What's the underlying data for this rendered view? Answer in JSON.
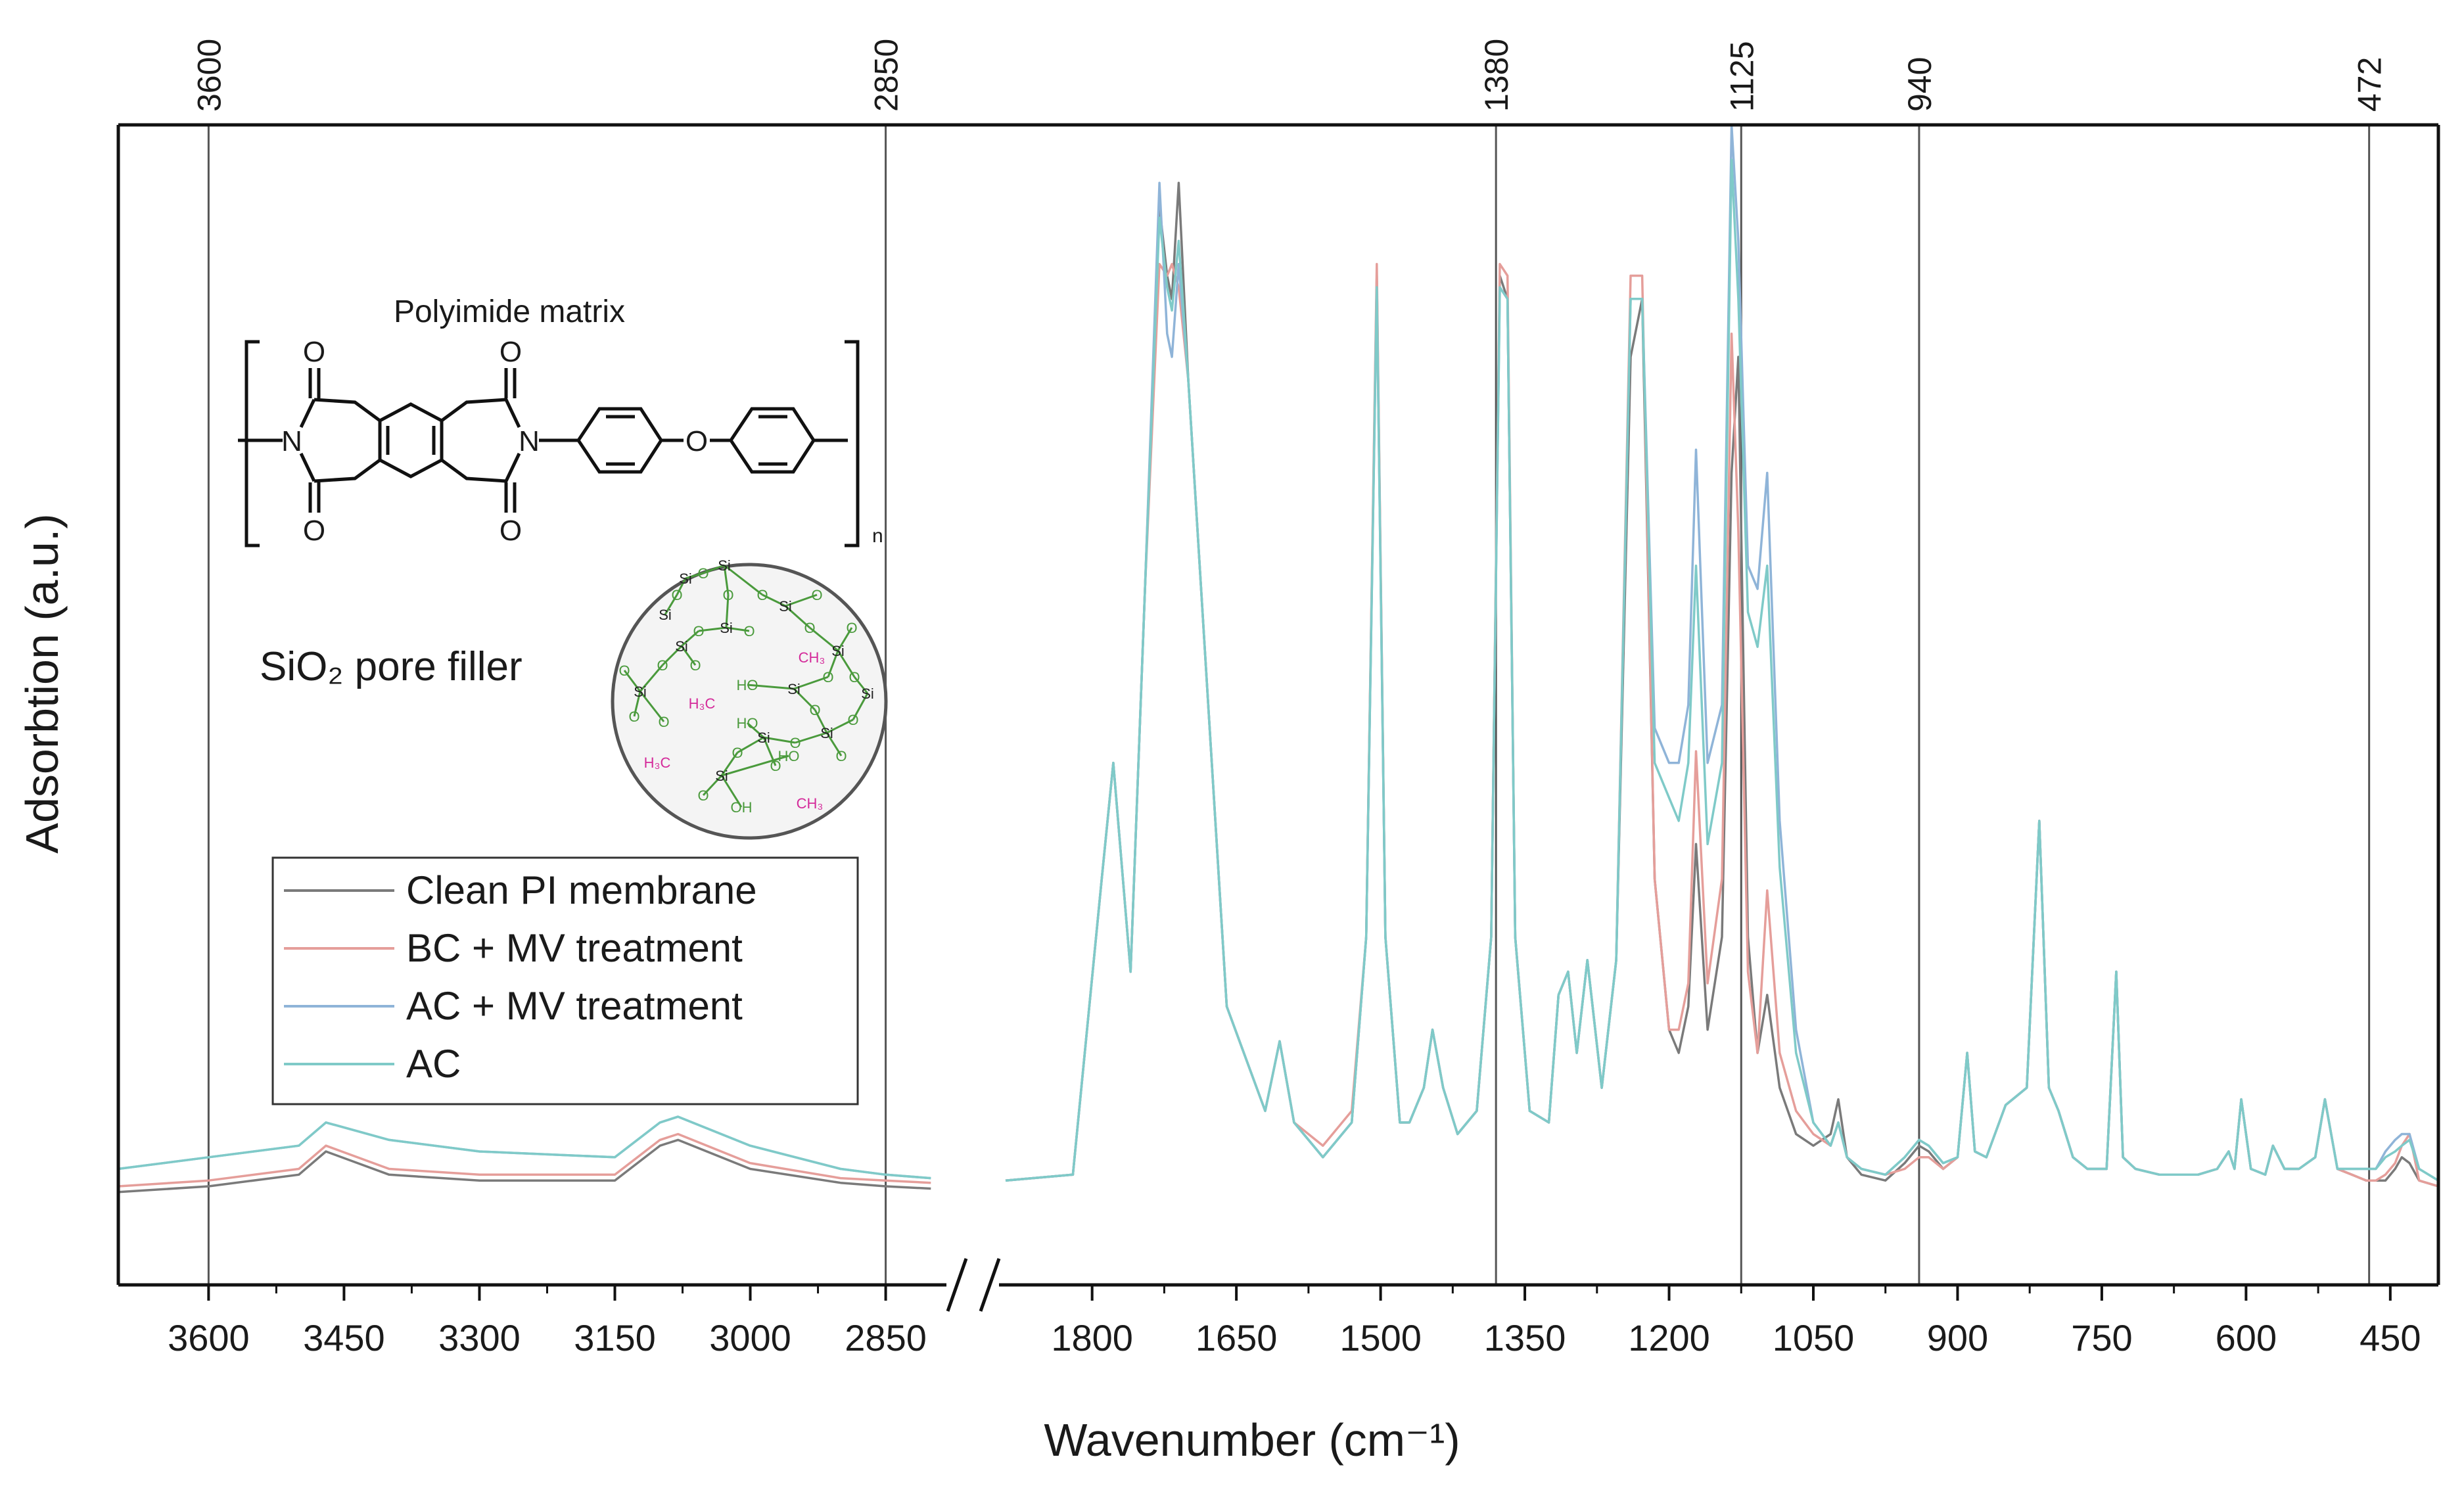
{
  "chart_data": {
    "type": "line",
    "title": "",
    "xlabel": "Wavenumber (cm⁻¹)",
    "ylabel": "Adsorbtion (a.u.)",
    "axis_break": {
      "between": [
        2850,
        1800
      ],
      "symbol": "//"
    },
    "x_segments": [
      {
        "xlim": [
          3700,
          2790
        ],
        "ticks": [
          3600,
          3450,
          3300,
          3150,
          3000,
          2850
        ]
      },
      {
        "xlim": [
          1890,
          400
        ],
        "ticks": [
          1800,
          1650,
          1500,
          1350,
          1200,
          1050,
          900,
          750,
          600,
          450
        ]
      }
    ],
    "ylim": [
      0,
      1
    ],
    "reference_lines": [
      3600,
      2850,
      1380,
      1125,
      940,
      472
    ],
    "series": [
      {
        "name": "Clean PI membrane",
        "color": "#7a7a7a",
        "x": [
          3700,
          3600,
          3500,
          3470,
          3400,
          3300,
          3150,
          3100,
          3080,
          3000,
          2900,
          2850,
          2800,
          1890,
          1820,
          1790,
          1778,
          1760,
          1745,
          1730,
          1722,
          1717,
          1710,
          1700,
          1660,
          1620,
          1605,
          1590,
          1560,
          1530,
          1515,
          1504,
          1495,
          1480,
          1470,
          1455,
          1446,
          1435,
          1420,
          1400,
          1385,
          1376,
          1368,
          1360,
          1345,
          1325,
          1315,
          1305,
          1296,
          1285,
          1270,
          1255,
          1240,
          1228,
          1215,
          1200,
          1190,
          1180,
          1172,
          1160,
          1145,
          1135,
          1128,
          1118,
          1108,
          1098,
          1085,
          1068,
          1050,
          1032,
          1024,
          1015,
          1000,
          975,
          955,
          940,
          930,
          915,
          900,
          890,
          882,
          870,
          850,
          828,
          815,
          805,
          795,
          780,
          765,
          745,
          735,
          728,
          715,
          690,
          670,
          650,
          630,
          618,
          612,
          605,
          595,
          580,
          572,
          560,
          545,
          528,
          518,
          505,
          490,
          475,
          465,
          455,
          445,
          438,
          430,
          420,
          400
        ],
        "y": [
          0.08,
          0.085,
          0.095,
          0.115,
          0.095,
          0.09,
          0.09,
          0.12,
          0.125,
          0.1,
          0.088,
          0.085,
          0.083,
          0.09,
          0.095,
          0.35,
          0.45,
          0.27,
          0.6,
          0.93,
          0.87,
          0.85,
          0.95,
          0.78,
          0.24,
          0.15,
          0.21,
          0.14,
          0.11,
          0.14,
          0.3,
          0.87,
          0.3,
          0.14,
          0.14,
          0.17,
          0.22,
          0.17,
          0.13,
          0.15,
          0.3,
          0.87,
          0.85,
          0.3,
          0.15,
          0.14,
          0.25,
          0.27,
          0.2,
          0.28,
          0.17,
          0.28,
          0.8,
          0.85,
          0.35,
          0.22,
          0.2,
          0.24,
          0.38,
          0.22,
          0.3,
          0.7,
          0.8,
          0.3,
          0.2,
          0.25,
          0.17,
          0.13,
          0.12,
          0.13,
          0.16,
          0.11,
          0.095,
          0.09,
          0.105,
          0.12,
          0.115,
          0.1,
          0.11,
          0.2,
          0.115,
          0.11,
          0.155,
          0.17,
          0.4,
          0.17,
          0.15,
          0.11,
          0.1,
          0.1,
          0.27,
          0.11,
          0.1,
          0.095,
          0.095,
          0.095,
          0.1,
          0.115,
          0.1,
          0.16,
          0.1,
          0.095,
          0.12,
          0.1,
          0.1,
          0.11,
          0.16,
          0.1,
          0.095,
          0.09,
          0.09,
          0.09,
          0.1,
          0.11,
          0.105,
          0.09,
          0.085
        ]
      },
      {
        "name": "BC + MV treatment",
        "color": "#e59e9a",
        "x": [
          3700,
          3600,
          3500,
          3470,
          3400,
          3300,
          3150,
          3100,
          3080,
          3000,
          2900,
          2850,
          2800,
          1890,
          1820,
          1790,
          1778,
          1760,
          1745,
          1730,
          1722,
          1717,
          1710,
          1700,
          1660,
          1620,
          1605,
          1590,
          1560,
          1530,
          1515,
          1504,
          1495,
          1480,
          1470,
          1455,
          1446,
          1435,
          1420,
          1400,
          1385,
          1376,
          1368,
          1360,
          1345,
          1325,
          1315,
          1305,
          1296,
          1285,
          1270,
          1255,
          1240,
          1228,
          1215,
          1200,
          1190,
          1180,
          1172,
          1160,
          1145,
          1135,
          1128,
          1118,
          1108,
          1098,
          1085,
          1068,
          1050,
          1032,
          1024,
          1015,
          1000,
          975,
          955,
          940,
          930,
          915,
          900,
          890,
          882,
          870,
          850,
          828,
          815,
          805,
          795,
          780,
          765,
          745,
          735,
          728,
          715,
          690,
          670,
          650,
          630,
          618,
          612,
          605,
          595,
          580,
          572,
          560,
          545,
          528,
          518,
          505,
          490,
          475,
          465,
          455,
          445,
          438,
          430,
          420,
          400
        ],
        "y": [
          0.085,
          0.09,
          0.1,
          0.12,
          0.1,
          0.095,
          0.095,
          0.125,
          0.13,
          0.105,
          0.092,
          0.09,
          0.088,
          0.09,
          0.095,
          0.35,
          0.45,
          0.27,
          0.6,
          0.88,
          0.87,
          0.88,
          0.86,
          0.78,
          0.24,
          0.15,
          0.21,
          0.14,
          0.12,
          0.15,
          0.3,
          0.88,
          0.3,
          0.14,
          0.14,
          0.17,
          0.22,
          0.17,
          0.13,
          0.15,
          0.3,
          0.88,
          0.87,
          0.3,
          0.15,
          0.14,
          0.25,
          0.27,
          0.2,
          0.28,
          0.17,
          0.28,
          0.87,
          0.87,
          0.35,
          0.22,
          0.22,
          0.26,
          0.46,
          0.26,
          0.35,
          0.82,
          0.65,
          0.27,
          0.2,
          0.34,
          0.2,
          0.15,
          0.13,
          0.12,
          0.14,
          0.11,
          0.1,
          0.095,
          0.1,
          0.11,
          0.11,
          0.1,
          0.11,
          0.2,
          0.115,
          0.11,
          0.155,
          0.17,
          0.4,
          0.17,
          0.15,
          0.11,
          0.1,
          0.1,
          0.27,
          0.11,
          0.1,
          0.095,
          0.095,
          0.095,
          0.1,
          0.115,
          0.1,
          0.16,
          0.1,
          0.095,
          0.12,
          0.1,
          0.1,
          0.11,
          0.16,
          0.1,
          0.095,
          0.09,
          0.09,
          0.095,
          0.105,
          0.12,
          0.13,
          0.09,
          0.085
        ]
      },
      {
        "name": "AC + MV treatment",
        "color": "#8fb4d8",
        "x": [
          3700,
          3600,
          3500,
          3470,
          3400,
          3300,
          3150,
          3100,
          3080,
          3000,
          2900,
          2850,
          2800,
          1890,
          1820,
          1790,
          1778,
          1760,
          1745,
          1730,
          1722,
          1717,
          1710,
          1700,
          1660,
          1620,
          1605,
          1590,
          1560,
          1530,
          1515,
          1504,
          1495,
          1480,
          1470,
          1455,
          1446,
          1435,
          1420,
          1400,
          1385,
          1376,
          1368,
          1360,
          1345,
          1325,
          1315,
          1305,
          1296,
          1285,
          1270,
          1255,
          1240,
          1228,
          1215,
          1200,
          1190,
          1180,
          1172,
          1160,
          1145,
          1135,
          1128,
          1118,
          1108,
          1098,
          1085,
          1068,
          1050,
          1032,
          1024,
          1015,
          1000,
          975,
          955,
          940,
          930,
          915,
          900,
          890,
          882,
          870,
          850,
          828,
          815,
          805,
          795,
          780,
          765,
          745,
          735,
          728,
          715,
          690,
          670,
          650,
          630,
          618,
          612,
          605,
          595,
          580,
          572,
          560,
          545,
          528,
          518,
          505,
          490,
          475,
          465,
          455,
          445,
          438,
          430,
          420,
          400
        ],
        "y": [
          0.1,
          0.11,
          0.12,
          0.14,
          0.125,
          0.115,
          0.11,
          0.14,
          0.145,
          0.12,
          0.1,
          0.095,
          0.092,
          0.09,
          0.095,
          0.35,
          0.45,
          0.27,
          0.6,
          0.95,
          0.82,
          0.8,
          0.88,
          0.78,
          0.24,
          0.15,
          0.21,
          0.14,
          0.11,
          0.14,
          0.3,
          0.86,
          0.3,
          0.14,
          0.14,
          0.17,
          0.22,
          0.17,
          0.13,
          0.15,
          0.3,
          0.86,
          0.85,
          0.3,
          0.15,
          0.14,
          0.25,
          0.27,
          0.2,
          0.28,
          0.17,
          0.28,
          0.85,
          0.85,
          0.48,
          0.45,
          0.45,
          0.5,
          0.72,
          0.45,
          0.5,
          1.0,
          0.9,
          0.62,
          0.6,
          0.7,
          0.4,
          0.22,
          0.14,
          0.12,
          0.14,
          0.11,
          0.1,
          0.095,
          0.11,
          0.125,
          0.12,
          0.105,
          0.11,
          0.2,
          0.115,
          0.11,
          0.155,
          0.17,
          0.4,
          0.17,
          0.15,
          0.11,
          0.1,
          0.1,
          0.27,
          0.11,
          0.1,
          0.095,
          0.095,
          0.095,
          0.1,
          0.115,
          0.1,
          0.16,
          0.1,
          0.095,
          0.12,
          0.1,
          0.1,
          0.11,
          0.16,
          0.1,
          0.1,
          0.1,
          0.1,
          0.115,
          0.125,
          0.13,
          0.13,
          0.1,
          0.09
        ]
      },
      {
        "name": "AC",
        "color": "#7fcac8",
        "x": [
          3700,
          3600,
          3500,
          3470,
          3400,
          3300,
          3150,
          3100,
          3080,
          3000,
          2900,
          2850,
          2800,
          1890,
          1820,
          1790,
          1778,
          1760,
          1745,
          1730,
          1722,
          1717,
          1710,
          1700,
          1660,
          1620,
          1605,
          1590,
          1560,
          1530,
          1515,
          1504,
          1495,
          1480,
          1470,
          1455,
          1446,
          1435,
          1420,
          1400,
          1385,
          1376,
          1368,
          1360,
          1345,
          1325,
          1315,
          1305,
          1296,
          1285,
          1270,
          1255,
          1240,
          1228,
          1215,
          1200,
          1190,
          1180,
          1172,
          1160,
          1145,
          1135,
          1128,
          1118,
          1108,
          1098,
          1085,
          1068,
          1050,
          1032,
          1024,
          1015,
          1000,
          975,
          955,
          940,
          930,
          915,
          900,
          890,
          882,
          870,
          850,
          828,
          815,
          805,
          795,
          780,
          765,
          745,
          735,
          728,
          715,
          690,
          670,
          650,
          630,
          618,
          612,
          605,
          595,
          580,
          572,
          560,
          545,
          528,
          518,
          505,
          490,
          475,
          465,
          455,
          445,
          438,
          430,
          420,
          400
        ],
        "y": [
          0.1,
          0.11,
          0.12,
          0.14,
          0.125,
          0.115,
          0.11,
          0.14,
          0.145,
          0.12,
          0.1,
          0.095,
          0.092,
          0.09,
          0.095,
          0.35,
          0.45,
          0.27,
          0.6,
          0.92,
          0.86,
          0.84,
          0.9,
          0.78,
          0.24,
          0.15,
          0.21,
          0.14,
          0.11,
          0.14,
          0.3,
          0.86,
          0.3,
          0.14,
          0.14,
          0.17,
          0.22,
          0.17,
          0.13,
          0.15,
          0.3,
          0.86,
          0.85,
          0.3,
          0.15,
          0.14,
          0.25,
          0.27,
          0.2,
          0.28,
          0.17,
          0.28,
          0.85,
          0.85,
          0.45,
          0.42,
          0.4,
          0.45,
          0.62,
          0.38,
          0.45,
          0.97,
          0.85,
          0.58,
          0.55,
          0.62,
          0.36,
          0.2,
          0.14,
          0.12,
          0.14,
          0.11,
          0.1,
          0.095,
          0.11,
          0.125,
          0.12,
          0.105,
          0.11,
          0.2,
          0.115,
          0.11,
          0.155,
          0.17,
          0.4,
          0.17,
          0.15,
          0.11,
          0.1,
          0.1,
          0.27,
          0.11,
          0.1,
          0.095,
          0.095,
          0.095,
          0.1,
          0.115,
          0.1,
          0.16,
          0.1,
          0.095,
          0.12,
          0.1,
          0.1,
          0.11,
          0.16,
          0.1,
          0.1,
          0.1,
          0.1,
          0.11,
          0.115,
          0.12,
          0.125,
          0.1,
          0.09
        ]
      }
    ],
    "legend": {
      "placement": "left",
      "entries": [
        "Clean PI membrane",
        "BC + MV treatment",
        "AC + MV treatment",
        "AC"
      ]
    },
    "annotations": {
      "polyimide_label": "Polyimide matrix",
      "polyimide_subscript": "n",
      "polyimide_atoms": {
        "o": "O",
        "n": "N"
      },
      "filler_label": "SiO₂ pore filler",
      "filler_atoms": {
        "si": "Si",
        "o": "O",
        "ho": "HO",
        "oh": "OH",
        "ch3": "CH₃",
        "h3c": "H₃C"
      },
      "filler_colors": {
        "siloxane": "#4a9a3c",
        "alkyl": "#d42a9a"
      }
    }
  }
}
